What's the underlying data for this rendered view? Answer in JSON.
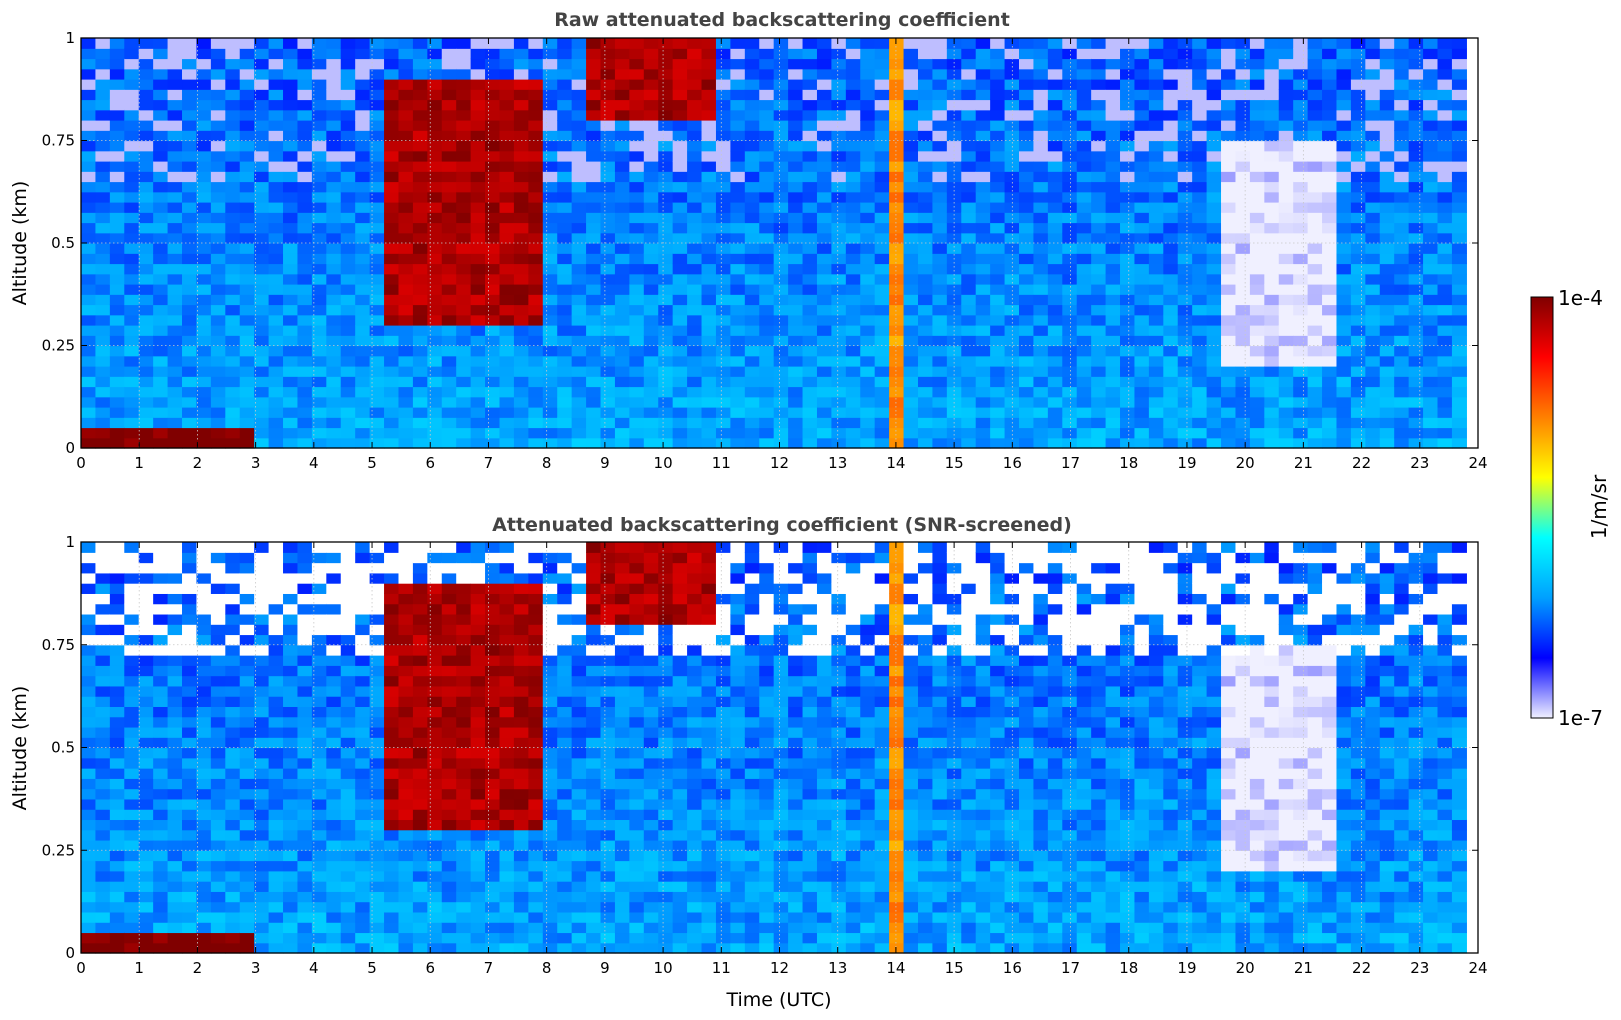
{
  "chart_data": [
    {
      "type": "heatmap",
      "title": "Raw attenuated backscattering coefficient",
      "xlabel": "",
      "ylabel": "Altitude (km)",
      "xlim": [
        0,
        24
      ],
      "ylim": [
        0,
        1
      ],
      "x_ticks": [
        "0",
        "1",
        "2",
        "3",
        "4",
        "5",
        "6",
        "7",
        "8",
        "9",
        "10",
        "11",
        "12",
        "13",
        "14",
        "15",
        "16",
        "17",
        "18",
        "19",
        "20",
        "21",
        "22",
        "23",
        "24"
      ],
      "y_ticks": [
        "0",
        "0.25",
        "0.5",
        "0.75",
        "1"
      ],
      "grid": true,
      "data_end_time": 23.8,
      "color_scale": "log",
      "features": [
        {
          "t0": 0.0,
          "t1": 3.0,
          "z0": 0.0,
          "z1": 0.05,
          "level": 1.0
        },
        {
          "t0": 5.3,
          "t1": 8.0,
          "z0": 0.3,
          "z1": 0.9,
          "level": 0.95
        },
        {
          "t0": 8.8,
          "t1": 10.9,
          "z0": 0.8,
          "z1": 1.0,
          "level": 0.95
        },
        {
          "t0": 13.8,
          "t1": 14.1,
          "z0": 0.0,
          "z1": 1.0,
          "level": 0.7
        },
        {
          "t0": 19.7,
          "t1": 21.6,
          "z0": 0.2,
          "z1": 0.75,
          "level": 0.0
        }
      ]
    },
    {
      "type": "heatmap",
      "title": "Attenuated backscattering coefficient (SNR-screened)",
      "xlabel": "Time (UTC)",
      "ylabel": "Altitude (km)",
      "xlim": [
        0,
        24
      ],
      "ylim": [
        0,
        1
      ],
      "x_ticks": [
        "0",
        "1",
        "2",
        "3",
        "4",
        "5",
        "6",
        "7",
        "8",
        "9",
        "10",
        "11",
        "12",
        "13",
        "14",
        "15",
        "16",
        "17",
        "18",
        "19",
        "20",
        "21",
        "22",
        "23",
        "24"
      ],
      "y_ticks": [
        "0",
        "0.25",
        "0.5",
        "0.75",
        "1"
      ],
      "grid": true,
      "data_end_time": 23.8,
      "color_scale": "log",
      "features": [
        {
          "t0": 0.0,
          "t1": 3.0,
          "z0": 0.0,
          "z1": 0.05,
          "level": 1.0
        },
        {
          "t0": 5.3,
          "t1": 8.0,
          "z0": 0.3,
          "z1": 0.9,
          "level": 0.95
        },
        {
          "t0": 8.8,
          "t1": 10.9,
          "z0": 0.8,
          "z1": 1.0,
          "level": 0.95
        },
        {
          "t0": 13.8,
          "t1": 14.1,
          "z0": 0.0,
          "z1": 1.0,
          "level": 0.7
        },
        {
          "t0": 19.7,
          "t1": 21.6,
          "z0": 0.2,
          "z1": 0.75,
          "level": 0.0
        }
      ]
    }
  ],
  "colorbar": {
    "label": "1/m/sr",
    "max_label": "1e-4",
    "min_label": "1e-7",
    "colormap": "jet",
    "colors": [
      "#f0f0ff",
      "#0000ff",
      "#00a0ff",
      "#00ffff",
      "#ffff00",
      "#ff8000",
      "#ff0000",
      "#800000"
    ]
  }
}
